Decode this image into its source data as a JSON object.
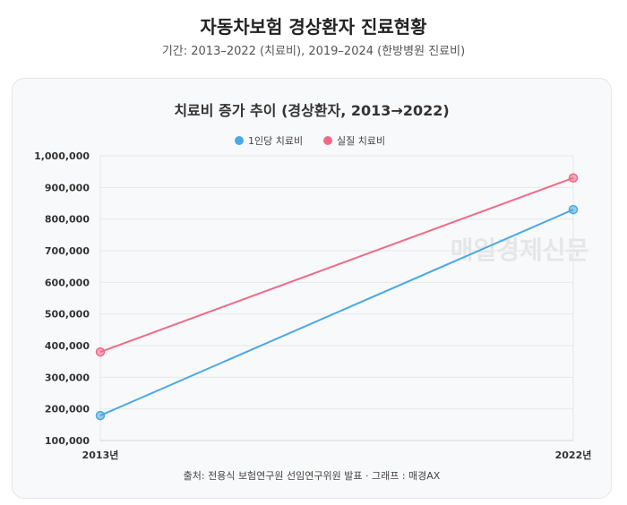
{
  "header": {
    "title": "자동차보험 경상환자 진료현황",
    "subtitle": "기간: 2013–2022 (치료비), 2019–2024 (한방병원 진료비)"
  },
  "chart_data": {
    "type": "line",
    "title": "치료비 증가 추이 (경상환자, 2013→2022)",
    "categories": [
      "2013년",
      "2022년"
    ],
    "series": [
      {
        "name": "1인당 치료비",
        "values": [
          179000,
          830000
        ],
        "color": "#4aa8e6"
      },
      {
        "name": "실질 치료비",
        "values": [
          380000,
          930000
        ],
        "color": "#f06a86"
      }
    ],
    "ylim": [
      100000,
      1000000
    ],
    "yticks": [
      "1,000,000",
      "900,000",
      "800,000",
      "700,000",
      "600,000",
      "500,000",
      "400,000",
      "300,000",
      "200,000",
      "100,000"
    ],
    "ytick_values": [
      1000000,
      900000,
      800000,
      700000,
      600000,
      500000,
      400000,
      300000,
      200000,
      100000
    ],
    "grid": true,
    "legend": "top-center"
  },
  "source": "출처: 전용식 보험연구원 선임연구위원 발표 · 그래프 : 매경AX",
  "watermark": "매일경제신문"
}
